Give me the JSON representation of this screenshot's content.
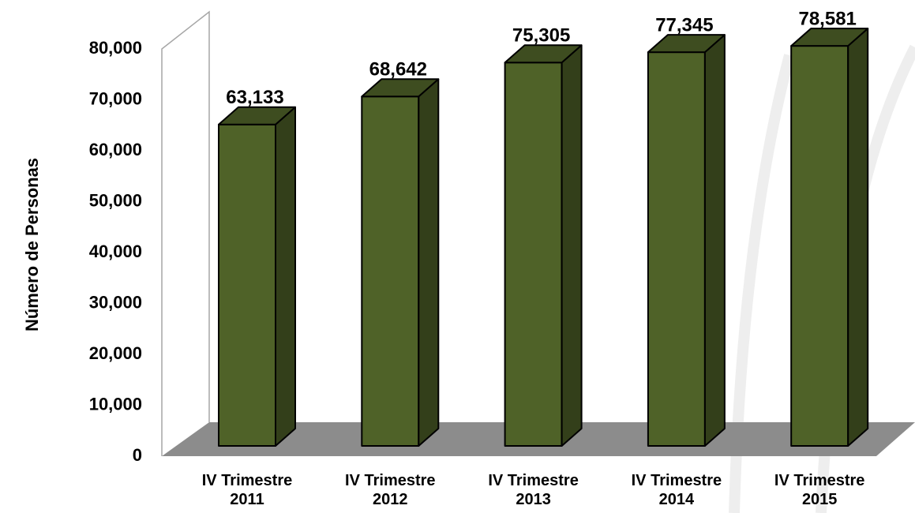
{
  "chart_data": {
    "type": "bar3d",
    "y_label": "Número de Personas",
    "categories": [
      "IV Trimestre 2011",
      "IV Trimestre 2012",
      "IV Trimestre 2013",
      "IV Trimestre 2014",
      "IV Trimestre 2015"
    ],
    "values": [
      63133,
      68642,
      75305,
      77345,
      78581
    ],
    "value_labels": [
      "63,133",
      "68,642",
      "75,305",
      "77,345",
      "78,581"
    ],
    "color": "#4f6228",
    "ylim": [
      0,
      80000
    ],
    "yticks": [
      0,
      {
        "value": 10000,
        "label": "10,000"
      },
      {
        "value": 20000,
        "label": "20,000"
      },
      {
        "value": 30000,
        "label": "30,000"
      },
      {
        "value": 40000,
        "label": "40,000"
      },
      {
        "value": 50000,
        "label": "50,000"
      },
      {
        "value": 60000,
        "label": "60,000"
      },
      {
        "value": 70000,
        "label": "70,000"
      },
      {
        "value": 80000,
        "label": "80,000"
      }
    ]
  }
}
